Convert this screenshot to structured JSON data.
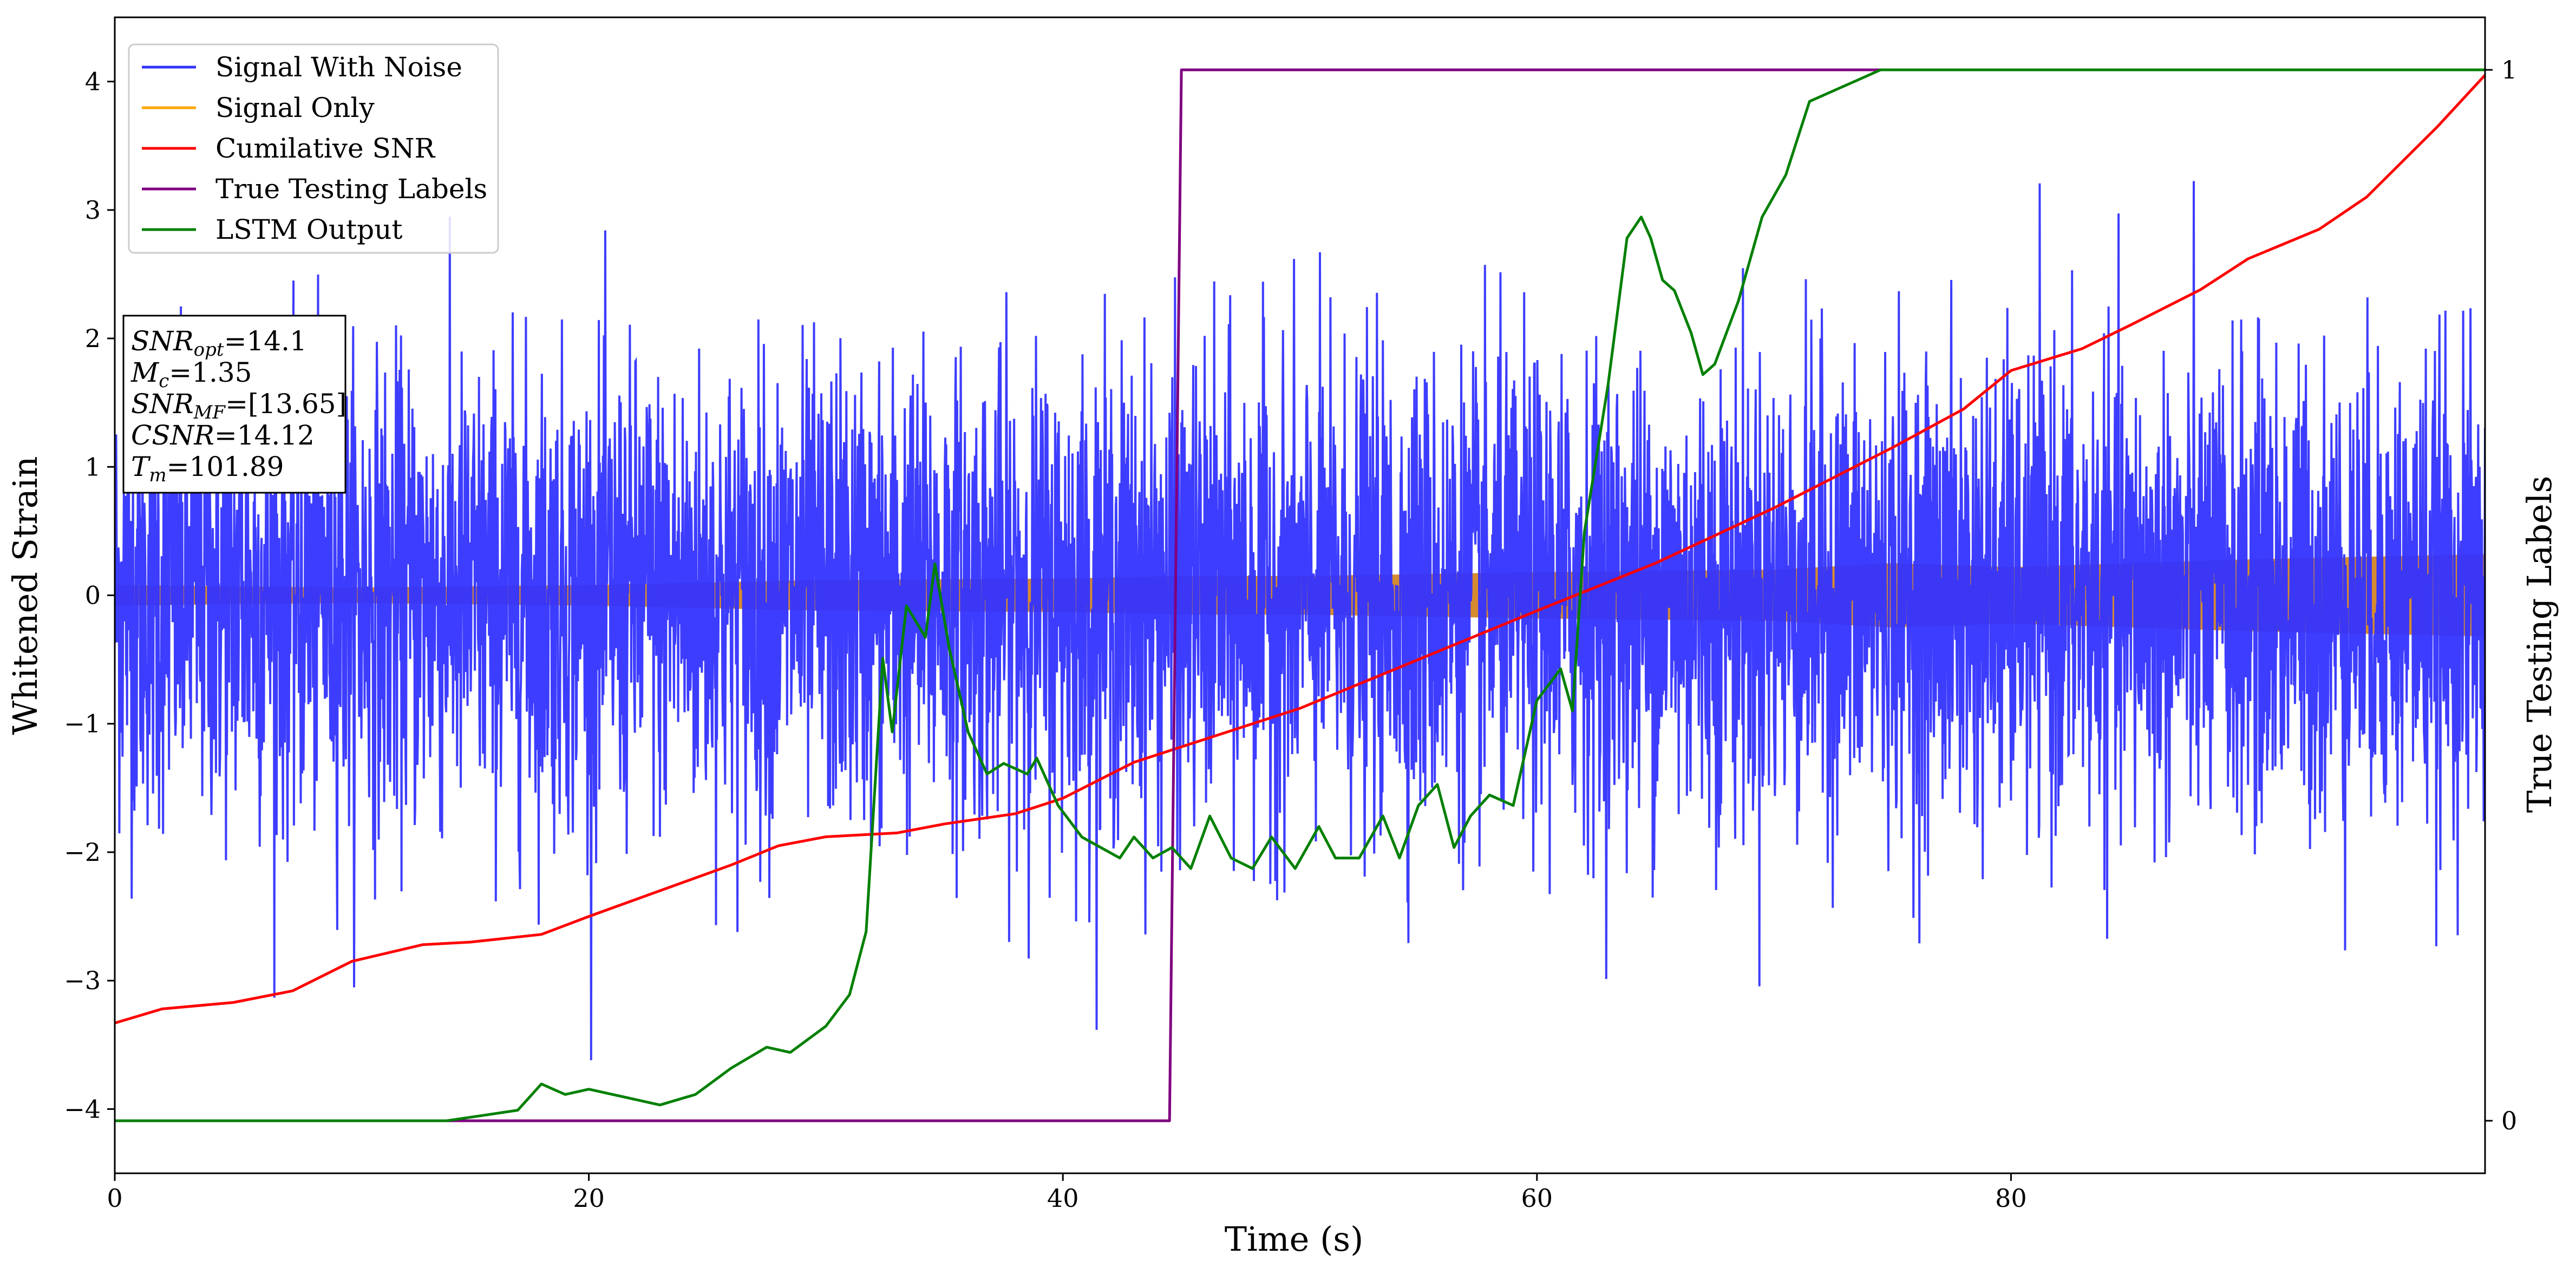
{
  "chart_data": {
    "type": "line",
    "xlabel": "Time (s)",
    "ylabel": "Whitened Strain",
    "y2label": "True Testing Labels",
    "xlim": [
      0,
      100
    ],
    "ylim": [
      -4.5,
      4.5
    ],
    "y2lim": [
      -0.05,
      1.05
    ],
    "grid": false,
    "legend_placement": "top-left",
    "x_ticks": [
      {
        "v": 0,
        "label": "0"
      },
      {
        "v": 20,
        "label": "20"
      },
      {
        "v": 40,
        "label": "40"
      },
      {
        "v": 60,
        "label": "60"
      },
      {
        "v": 80,
        "label": "80"
      }
    ],
    "y_ticks": [
      {
        "v": 4,
        "label": "4"
      },
      {
        "v": 3,
        "label": "3"
      },
      {
        "v": 2,
        "label": "2"
      },
      {
        "v": 1,
        "label": "1"
      },
      {
        "v": 0,
        "label": "0"
      },
      {
        "v": -1,
        "label": "−1"
      },
      {
        "v": -2,
        "label": "−2"
      },
      {
        "v": -3,
        "label": "−3"
      },
      {
        "v": -4,
        "label": "−4"
      }
    ],
    "y2_ticks": [
      {
        "v": 1,
        "label": "1"
      },
      {
        "v": 0,
        "label": "0"
      }
    ],
    "legend": [
      {
        "label": "Signal With Noise",
        "color": "#3333ff"
      },
      {
        "label": "Signal Only",
        "color": "#ffa500"
      },
      {
        "label": "Cumilative SNR",
        "color": "#ff0000"
      },
      {
        "label": "True Testing Labels",
        "color": "#800080"
      },
      {
        "label": "LSTM Output",
        "color": "#008000"
      }
    ],
    "annotation": {
      "lines": [
        {
          "base": "SNR",
          "sub": "opt",
          "value": "=14.1"
        },
        {
          "base": "M",
          "sub": "c",
          "value": "=1.35"
        },
        {
          "base": "SNR",
          "sub": "MF",
          "value": "=[13.65]"
        },
        {
          "base": "CSNR",
          "sub": "",
          "value": "=14.12"
        },
        {
          "base": "T",
          "sub": "m",
          "value": "=101.89"
        }
      ]
    },
    "series": [
      {
        "name": "Signal With Noise",
        "axis": "left",
        "color": "#3333ff",
        "style": "noise",
        "noise_std": 0.9,
        "noise_max": 3.9
      },
      {
        "name": "Signal Only",
        "axis": "left",
        "color": "#ffa500",
        "style": "band",
        "envelope": [
          [
            0,
            0.08
          ],
          [
            10,
            0.06
          ],
          [
            20,
            0.08
          ],
          [
            30,
            0.12
          ],
          [
            40,
            0.13
          ],
          [
            45,
            0.15
          ],
          [
            50,
            0.15
          ],
          [
            60,
            0.18
          ],
          [
            70,
            0.2
          ],
          [
            75,
            0.25
          ],
          [
            80,
            0.22
          ],
          [
            85,
            0.25
          ],
          [
            90,
            0.28
          ],
          [
            95,
            0.3
          ],
          [
            100,
            0.32
          ]
        ]
      },
      {
        "name": "Cumilative SNR",
        "axis": "left",
        "color": "#ff0000",
        "style": "line",
        "points": [
          [
            0,
            -3.33
          ],
          [
            2,
            -3.22
          ],
          [
            5,
            -3.17
          ],
          [
            7.5,
            -3.08
          ],
          [
            10,
            -2.85
          ],
          [
            13,
            -2.72
          ],
          [
            15,
            -2.7
          ],
          [
            18,
            -2.64
          ],
          [
            20,
            -2.5
          ],
          [
            23,
            -2.3
          ],
          [
            26,
            -2.1
          ],
          [
            28,
            -1.95
          ],
          [
            30,
            -1.88
          ],
          [
            33,
            -1.85
          ],
          [
            35,
            -1.78
          ],
          [
            38,
            -1.7
          ],
          [
            40,
            -1.58
          ],
          [
            43,
            -1.3
          ],
          [
            45,
            -1.18
          ],
          [
            50,
            -0.88
          ],
          [
            55,
            -0.5
          ],
          [
            60,
            -0.12
          ],
          [
            65,
            0.25
          ],
          [
            70,
            0.68
          ],
          [
            75,
            1.15
          ],
          [
            78,
            1.45
          ],
          [
            80,
            1.75
          ],
          [
            83,
            1.92
          ],
          [
            85,
            2.1
          ],
          [
            88,
            2.38
          ],
          [
            90,
            2.62
          ],
          [
            93,
            2.85
          ],
          [
            95,
            3.1
          ],
          [
            98,
            3.65
          ],
          [
            100,
            4.05
          ]
        ]
      },
      {
        "name": "True Testing Labels",
        "axis": "right",
        "color": "#800080",
        "style": "line",
        "points": [
          [
            0,
            0
          ],
          [
            44.5,
            0
          ],
          [
            45,
            1
          ],
          [
            75,
            1
          ]
        ]
      },
      {
        "name": "LSTM Output",
        "axis": "right",
        "color": "#008000",
        "style": "line",
        "points": [
          [
            0,
            0
          ],
          [
            14,
            0
          ],
          [
            15.5,
            0.005
          ],
          [
            17,
            0.01
          ],
          [
            18,
            0.035
          ],
          [
            19,
            0.025
          ],
          [
            20,
            0.03
          ],
          [
            22,
            0.02
          ],
          [
            23,
            0.015
          ],
          [
            24.5,
            0.025
          ],
          [
            26,
            0.05
          ],
          [
            27.5,
            0.07
          ],
          [
            28.5,
            0.065
          ],
          [
            30,
            0.09
          ],
          [
            31,
            0.12
          ],
          [
            31.7,
            0.18
          ],
          [
            32.4,
            0.44
          ],
          [
            32.8,
            0.37
          ],
          [
            33.4,
            0.49
          ],
          [
            34.2,
            0.46
          ],
          [
            34.6,
            0.53
          ],
          [
            35.2,
            0.45
          ],
          [
            36,
            0.37
          ],
          [
            36.8,
            0.33
          ],
          [
            37.5,
            0.34
          ],
          [
            38.5,
            0.33
          ],
          [
            38.9,
            0.345
          ],
          [
            39.8,
            0.3
          ],
          [
            40.8,
            0.27
          ],
          [
            41.6,
            0.26
          ],
          [
            42.4,
            0.25
          ],
          [
            43,
            0.27
          ],
          [
            43.8,
            0.25
          ],
          [
            44.6,
            0.26
          ],
          [
            45.4,
            0.24
          ],
          [
            46.2,
            0.29
          ],
          [
            47.1,
            0.25
          ],
          [
            48,
            0.24
          ],
          [
            48.8,
            0.27
          ],
          [
            49.8,
            0.24
          ],
          [
            50.8,
            0.28
          ],
          [
            51.5,
            0.25
          ],
          [
            52.5,
            0.25
          ],
          [
            53.5,
            0.29
          ],
          [
            54.2,
            0.25
          ],
          [
            55,
            0.3
          ],
          [
            55.8,
            0.32
          ],
          [
            56.5,
            0.26
          ],
          [
            57.2,
            0.29
          ],
          [
            58,
            0.31
          ],
          [
            59,
            0.3
          ],
          [
            60,
            0.4
          ],
          [
            61,
            0.43
          ],
          [
            61.5,
            0.39
          ],
          [
            62,
            0.56
          ],
          [
            63,
            0.7
          ],
          [
            63.8,
            0.84
          ],
          [
            64.4,
            0.86
          ],
          [
            64.8,
            0.84
          ],
          [
            65.3,
            0.8
          ],
          [
            65.8,
            0.79
          ],
          [
            66.5,
            0.75
          ],
          [
            67,
            0.71
          ],
          [
            67.5,
            0.72
          ],
          [
            68.5,
            0.78
          ],
          [
            69.5,
            0.86
          ],
          [
            70.5,
            0.9
          ],
          [
            71.5,
            0.97
          ],
          [
            72.5,
            0.98
          ],
          [
            73.5,
            0.99
          ],
          [
            74.5,
            1.0
          ],
          [
            76,
            1.0
          ],
          [
            100,
            1.0
          ]
        ]
      }
    ]
  }
}
